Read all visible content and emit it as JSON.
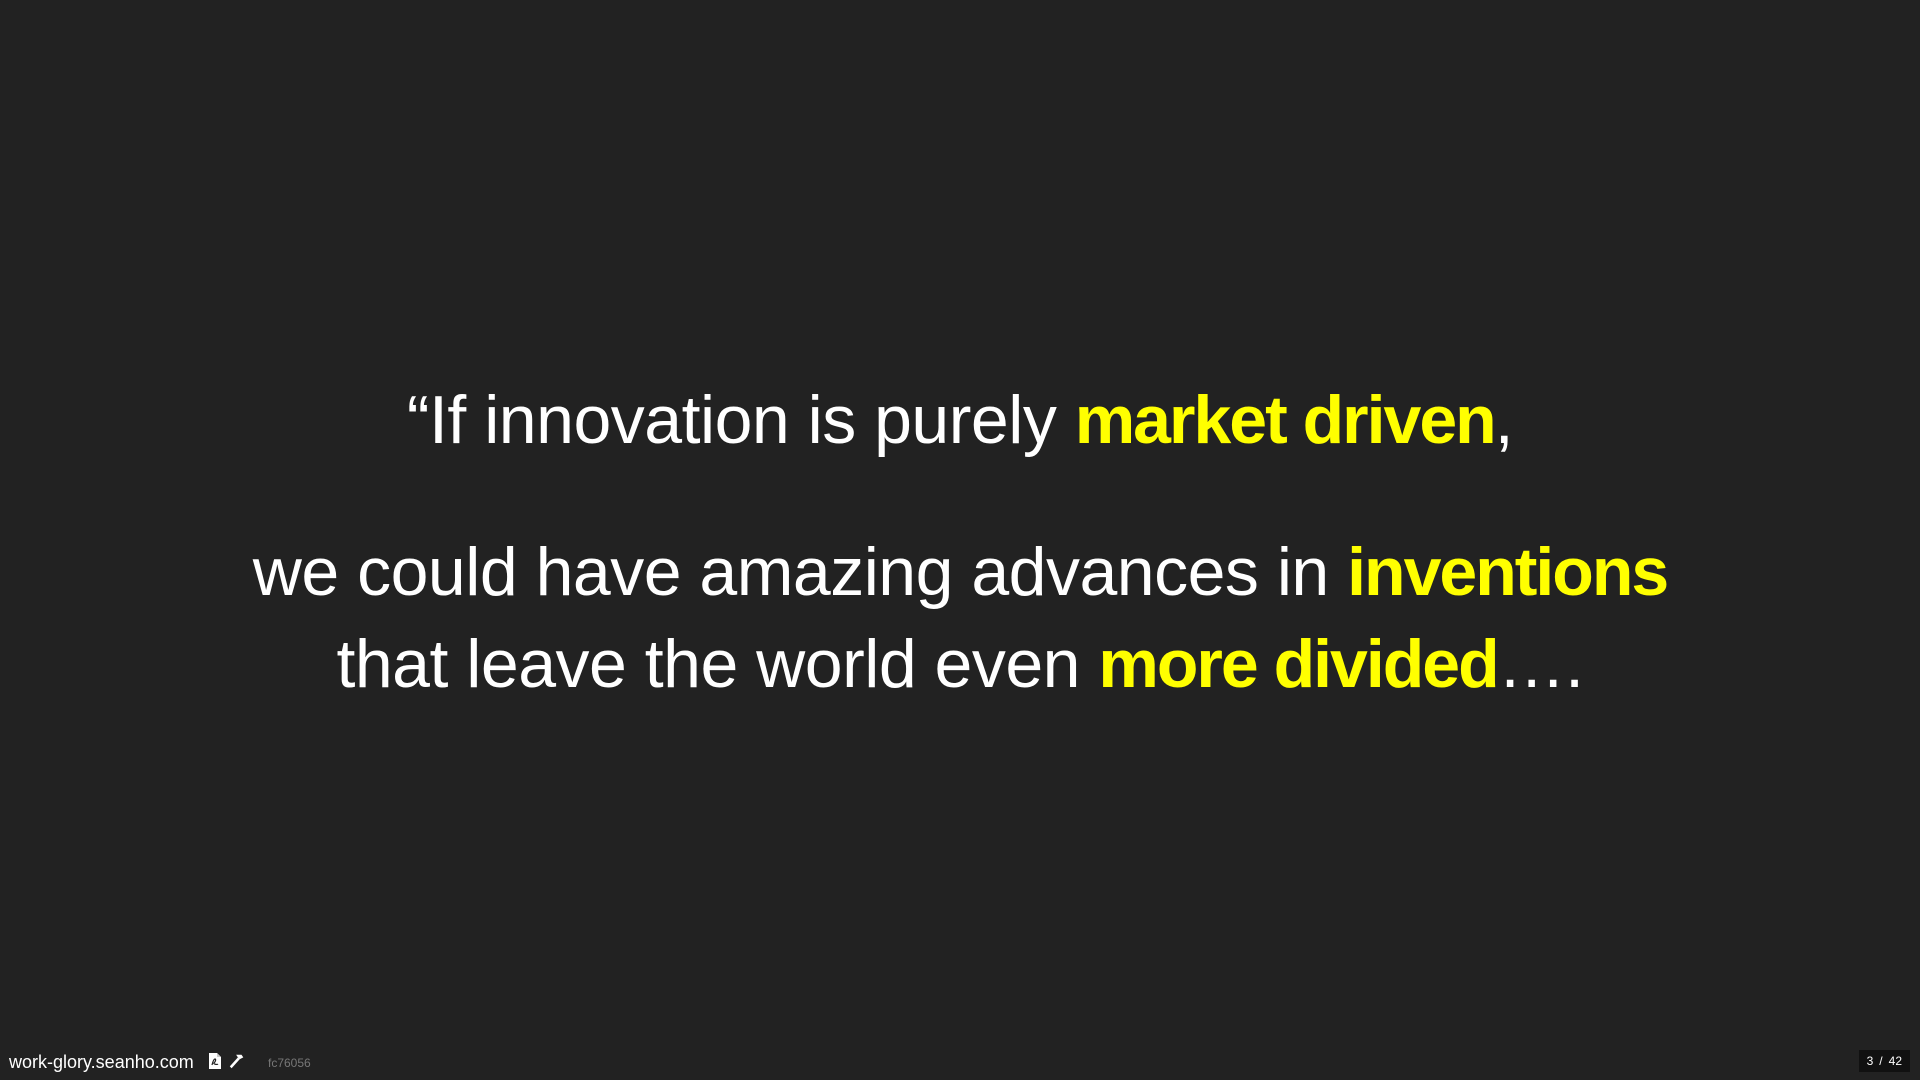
{
  "quote": {
    "line1": {
      "pre": "“If innovation is purely ",
      "highlight": "market driven",
      "post": ","
    },
    "line2": {
      "pre": "we could have amazing advances in ",
      "highlight": "inventions",
      "post": ""
    },
    "line3": {
      "pre": "that leave the world even ",
      "highlight": "more divided",
      "post": "…."
    }
  },
  "footer": {
    "site": "work-glory.seanho.com",
    "commit": "fc76056",
    "icons": [
      "pdf-icon",
      "hammer-icon"
    ]
  },
  "pager": {
    "current": "3",
    "separator": "/",
    "total": "42"
  },
  "colors": {
    "background": "#222222",
    "text": "#ffffff",
    "highlight": "#ffff00"
  }
}
